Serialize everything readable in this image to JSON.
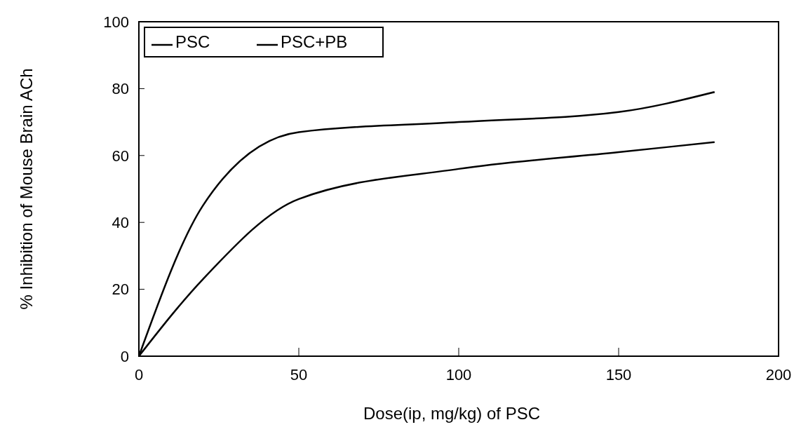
{
  "chart_data": {
    "type": "line",
    "xlabel": "Dose(ip, mg/kg) of PSC",
    "ylabel": "% Inhibition of Mouse Brain ACh",
    "x": [
      0,
      20,
      50,
      100,
      150,
      180
    ],
    "series": [
      {
        "name": "PSC",
        "color": "#000000",
        "values": [
          0,
          45,
          67,
          70,
          73,
          79
        ]
      },
      {
        "name": "PSC+PB",
        "color": "#000000",
        "values": [
          0,
          23,
          47,
          56,
          61,
          64
        ]
      }
    ],
    "xlim": [
      0,
      200
    ],
    "xticks": [
      0,
      50,
      100,
      150,
      200
    ],
    "ylim": [
      0,
      100
    ],
    "yticks": [
      0,
      20,
      40,
      60,
      80,
      100
    ],
    "grid": false,
    "legend": "top left",
    "marker": "none",
    "line_style": "solid"
  }
}
